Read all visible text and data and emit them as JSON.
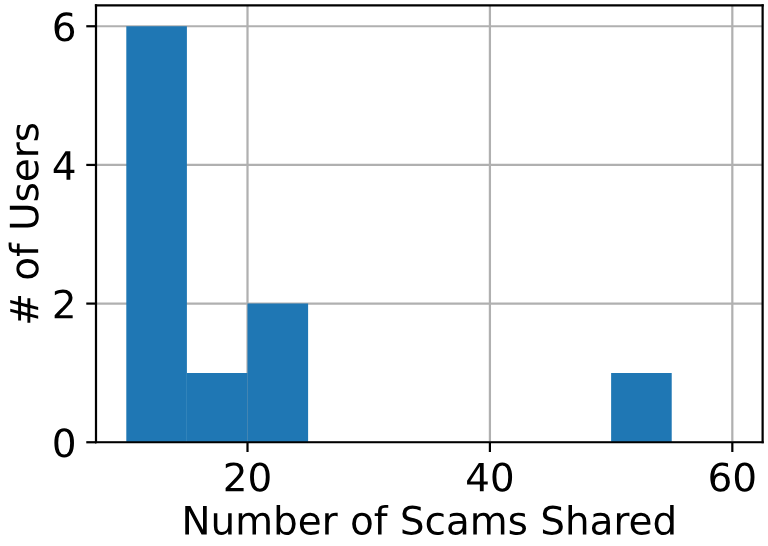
{
  "chart_data": {
    "type": "histogram",
    "xlabel": "Number of Scams Shared",
    "ylabel": "# of Users",
    "bins": [
      10,
      15,
      20,
      25,
      30,
      35,
      40,
      45,
      50,
      55,
      60
    ],
    "values": [
      6,
      1,
      2,
      0,
      0,
      0,
      0,
      0,
      1,
      0
    ],
    "color": "#1f77b4",
    "xlim": [
      7.5,
      62.5
    ],
    "xticks": [
      20,
      40,
      60
    ],
    "ylim": [
      0,
      6.3
    ],
    "yticks": [
      0,
      2,
      4,
      6
    ],
    "grid": true
  }
}
